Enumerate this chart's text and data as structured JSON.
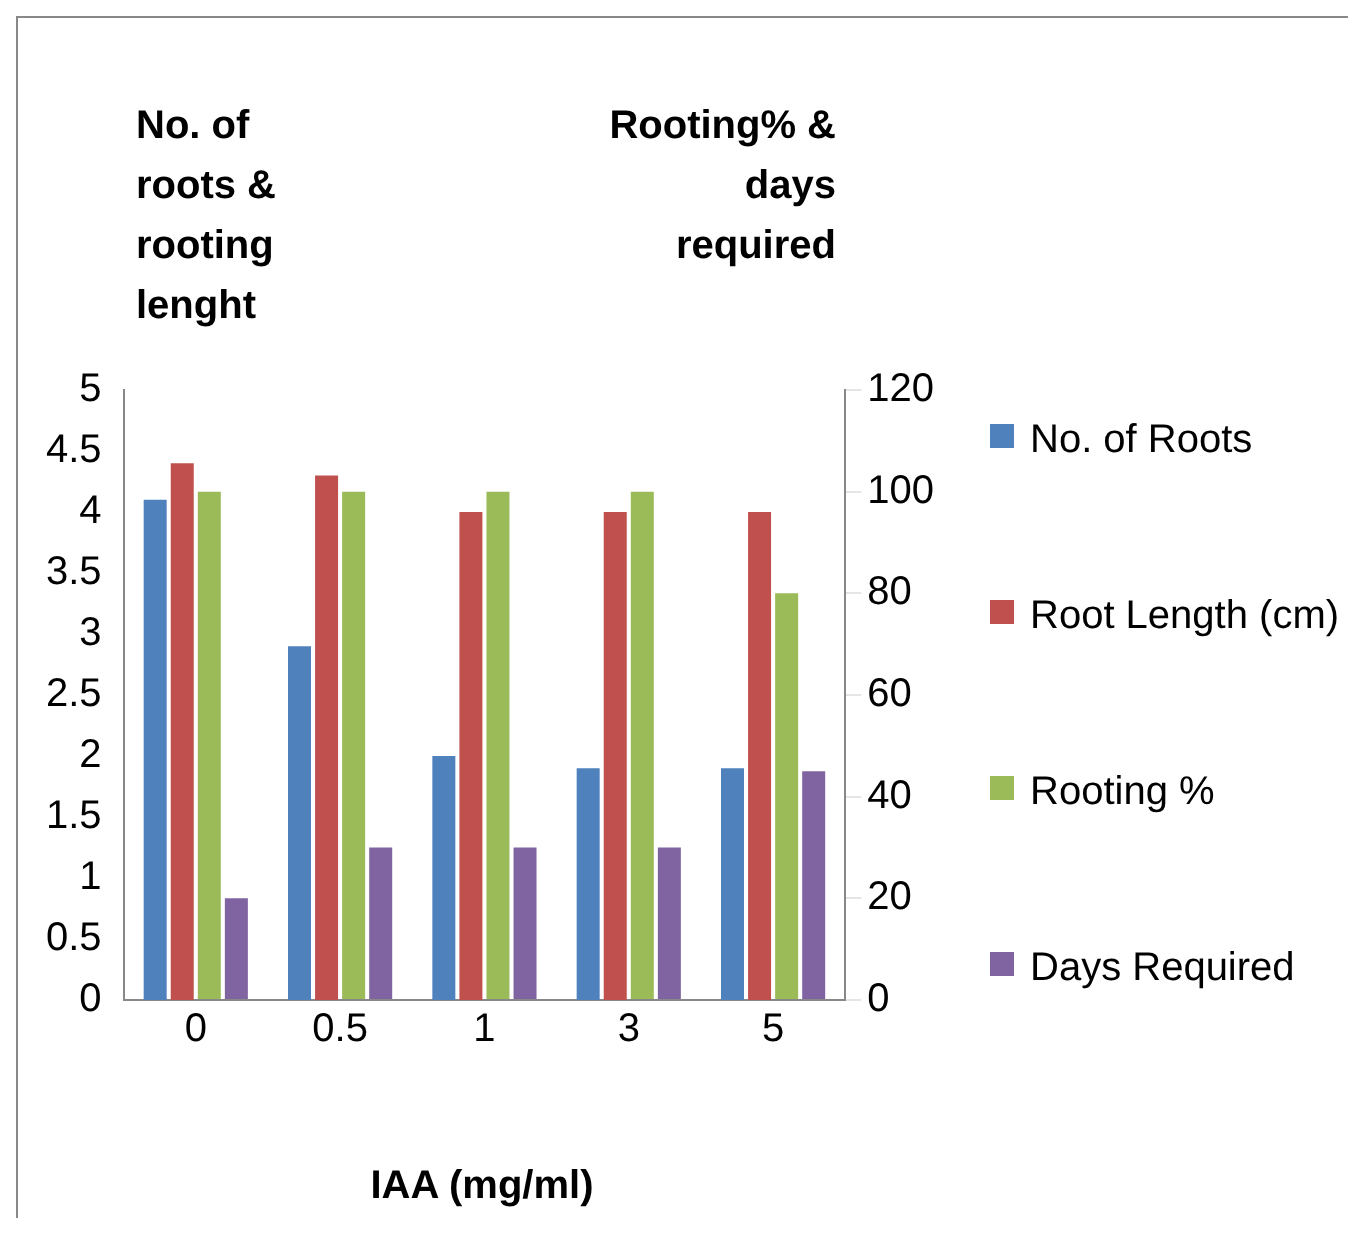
{
  "chart_data": {
    "type": "bar",
    "xlabel": "IAA (mg/ml)",
    "ylabel": "No. of roots & rooting lenght",
    "y2label": "Rooting% & days required",
    "categories": [
      "0",
      "0.5",
      "1",
      "3",
      "5"
    ],
    "series": [
      {
        "name": "No. of Roots",
        "color": "#4f81bd",
        "values": [
          4.1,
          2.9,
          2.0,
          1.9,
          1.9
        ]
      },
      {
        "name": "Root Length (cm)",
        "color": "#c0504d",
        "values": [
          4.4,
          4.3,
          4.0,
          4.0,
          4.0
        ]
      },
      {
        "name": "Rooting %",
        "color": "#9bbb59",
        "axis": "y2",
        "values": [
          100,
          100,
          100,
          100,
          80
        ]
      },
      {
        "name": "Days Required",
        "color": "#8064a2",
        "axis": "y2",
        "values": [
          20,
          30,
          30,
          30,
          45
        ]
      }
    ],
    "ylim": [
      0,
      5
    ],
    "yticks": [
      0,
      0.5,
      1,
      1.5,
      2,
      2.5,
      3,
      3.5,
      4,
      4.5,
      5
    ],
    "y2lim": [
      0,
      120
    ],
    "y2ticks": [
      0,
      20,
      40,
      60,
      80,
      100,
      120
    ],
    "grid": false,
    "legend": "right"
  }
}
